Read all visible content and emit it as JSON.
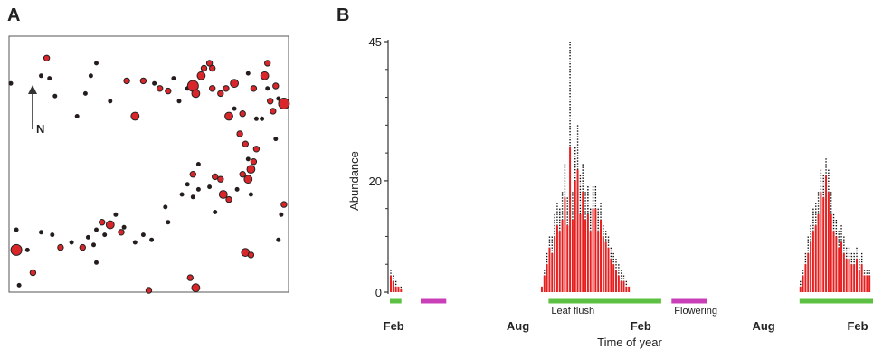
{
  "panels": {
    "a": {
      "letter": "A",
      "north_label": "N"
    },
    "b": {
      "letter": "B"
    }
  },
  "colors": {
    "bar_red": "#e62020",
    "point_red": "#d8262a",
    "leaf_flush_green": "#5cc043",
    "flowering_magenta": "#c93fb8",
    "outline": "#222222"
  },
  "chart_data": [
    {
      "type": "scatter",
      "description_units": "map coordinates (0-100 scale); size = relative symbol size",
      "xlim": [
        0,
        100
      ],
      "ylim": [
        0,
        100
      ],
      "points": [
        [
          0,
          82,
          1
        ],
        [
          11,
          85,
          1
        ],
        [
          13,
          92,
          2
        ],
        [
          14,
          84,
          1
        ],
        [
          16,
          77,
          1
        ],
        [
          24,
          69,
          1
        ],
        [
          27,
          78,
          1
        ],
        [
          29,
          85,
          1
        ],
        [
          31,
          90,
          1
        ],
        [
          36,
          75,
          1
        ],
        [
          42,
          83,
          2
        ],
        [
          45,
          69,
          3
        ],
        [
          48,
          83,
          2
        ],
        [
          52,
          82,
          1
        ],
        [
          54,
          80,
          2
        ],
        [
          57,
          79,
          2
        ],
        [
          59,
          84,
          1
        ],
        [
          61,
          75,
          1
        ],
        [
          64,
          80,
          1
        ],
        [
          66,
          81,
          4
        ],
        [
          67,
          78,
          3
        ],
        [
          69,
          85,
          3
        ],
        [
          70,
          88,
          2
        ],
        [
          72,
          90,
          2
        ],
        [
          73,
          80,
          2
        ],
        [
          73,
          88,
          2
        ],
        [
          76,
          78,
          2
        ],
        [
          78,
          80,
          2
        ],
        [
          81,
          82,
          3
        ],
        [
          79,
          69,
          3
        ],
        [
          81,
          72,
          1
        ],
        [
          83,
          62,
          2
        ],
        [
          84,
          70,
          2
        ],
        [
          85,
          58,
          2
        ],
        [
          86,
          52,
          1
        ],
        [
          89,
          68,
          1
        ],
        [
          92,
          85,
          3
        ],
        [
          93,
          90,
          2
        ],
        [
          93,
          80,
          1
        ],
        [
          94,
          75,
          2
        ],
        [
          95,
          71,
          2
        ],
        [
          96,
          60,
          1
        ],
        [
          97,
          76,
          1
        ],
        [
          99,
          74,
          4
        ],
        [
          88,
          51,
          2
        ],
        [
          89,
          56,
          2
        ],
        [
          87,
          48,
          3
        ],
        [
          84,
          46,
          2
        ],
        [
          82,
          40,
          1
        ],
        [
          86,
          44,
          3
        ],
        [
          76,
          44,
          2
        ],
        [
          74,
          45,
          2
        ],
        [
          72,
          41,
          1
        ],
        [
          68,
          50,
          1
        ],
        [
          66,
          46,
          2
        ],
        [
          64,
          42,
          1
        ],
        [
          62,
          38,
          1
        ],
        [
          66,
          37,
          1
        ],
        [
          74,
          31,
          1
        ],
        [
          68,
          40,
          1
        ],
        [
          77,
          38,
          3
        ],
        [
          79,
          36,
          2
        ],
        [
          87,
          38,
          1
        ],
        [
          99,
          34,
          2
        ],
        [
          98,
          30,
          1
        ],
        [
          97,
          20,
          1
        ],
        [
          57,
          27,
          1
        ],
        [
          56,
          33,
          1
        ],
        [
          45,
          19,
          1
        ],
        [
          41,
          25,
          1
        ],
        [
          40,
          23,
          2
        ],
        [
          38,
          30,
          1
        ],
        [
          36,
          26,
          3
        ],
        [
          34,
          22,
          1
        ],
        [
          33,
          27,
          2
        ],
        [
          31,
          24,
          1
        ],
        [
          30,
          18,
          1
        ],
        [
          28,
          21,
          1
        ],
        [
          26,
          17,
          2
        ],
        [
          22,
          19,
          1
        ],
        [
          18,
          17,
          2
        ],
        [
          15,
          22,
          1
        ],
        [
          11,
          23,
          1
        ],
        [
          6,
          16,
          1
        ],
        [
          2,
          16,
          4
        ],
        [
          2,
          24,
          1
        ],
        [
          8,
          7,
          2
        ],
        [
          3,
          2,
          1
        ],
        [
          48,
          22,
          1
        ],
        [
          51,
          20,
          1
        ],
        [
          85,
          15,
          3
        ],
        [
          87,
          14,
          2
        ],
        [
          65,
          5,
          2
        ],
        [
          67,
          1,
          3
        ],
        [
          50,
          0,
          2
        ],
        [
          31,
          11,
          1
        ],
        [
          88,
          80,
          2
        ],
        [
          86,
          86,
          1
        ],
        [
          96,
          81,
          2
        ],
        [
          91,
          68,
          1
        ]
      ]
    },
    {
      "type": "bar",
      "title": "",
      "xlabel": "Time of year",
      "ylabel": "Abundance",
      "ylim": [
        0,
        45
      ],
      "yticks": [
        0,
        20,
        45
      ],
      "x_tick_labels": [
        {
          "label": "Feb",
          "pos": 1.5
        },
        {
          "label": "Aug",
          "pos": 50
        },
        {
          "label": "Feb",
          "pos": 98
        },
        {
          "label": "Aug",
          "pos": 146
        },
        {
          "label": "Feb",
          "pos": 194
        }
      ],
      "values": [
        3,
        2,
        1,
        1,
        0.5,
        0,
        0,
        0,
        0,
        0,
        0,
        0,
        0,
        0,
        0,
        0,
        0,
        0,
        0,
        0,
        0,
        0,
        0,
        0,
        0,
        0,
        0,
        0,
        0,
        0,
        0,
        0,
        0,
        0,
        0,
        0,
        0,
        0,
        0,
        0,
        0,
        0,
        0,
        0,
        0,
        0,
        0,
        0,
        0,
        0,
        0,
        0,
        0,
        0,
        0,
        0,
        0,
        0,
        0,
        1,
        3,
        5,
        8,
        7,
        10,
        12,
        11,
        13,
        17,
        12,
        26,
        13,
        20,
        22,
        14,
        18,
        13,
        14,
        11,
        15,
        15,
        11,
        13,
        10,
        9,
        8,
        6,
        5,
        4,
        3,
        2,
        2,
        1,
        1,
        0,
        0,
        0,
        0,
        0,
        0,
        0,
        0,
        0,
        0,
        0,
        0,
        0,
        0,
        0,
        0,
        0,
        0,
        0,
        0,
        0,
        0,
        0,
        0,
        0,
        0,
        0,
        0,
        0,
        0,
        0,
        0,
        0,
        0,
        0,
        0,
        0,
        0,
        0,
        0,
        0,
        0,
        0,
        0,
        0,
        0,
        0,
        0,
        0,
        0,
        0,
        0,
        0,
        0,
        0,
        0,
        0,
        0,
        0,
        0,
        0,
        0,
        0,
        0,
        0,
        0,
        1,
        3,
        5,
        7,
        9,
        11,
        12,
        14,
        18,
        17,
        21,
        18,
        14,
        11,
        10,
        8,
        9,
        7,
        6,
        6,
        5,
        5,
        6,
        4,
        5,
        3,
        3,
        3
      ],
      "whiskers": [
        4,
        3,
        2,
        1,
        1,
        0,
        0,
        0,
        0,
        0,
        0,
        0,
        0,
        0,
        0,
        0,
        0,
        0,
        0,
        0,
        0,
        0,
        0,
        0,
        0,
        0,
        0,
        0,
        0,
        0,
        0,
        0,
        0,
        0,
        0,
        0,
        0,
        0,
        0,
        0,
        0,
        0,
        0,
        0,
        0,
        0,
        0,
        0,
        0,
        0,
        0,
        0,
        0,
        0,
        0,
        0,
        0,
        0,
        0,
        1,
        4,
        7,
        10,
        10,
        14,
        16,
        15,
        18,
        23,
        17,
        45,
        18,
        26,
        30,
        21,
        23,
        18,
        19,
        15,
        19,
        19,
        15,
        16,
        12,
        11,
        10,
        8,
        7,
        6,
        5,
        4,
        3,
        2,
        1,
        0,
        0,
        0,
        0,
        0,
        0,
        0,
        0,
        0,
        0,
        0,
        0,
        0,
        0,
        0,
        0,
        0,
        0,
        0,
        0,
        0,
        0,
        0,
        0,
        0,
        0,
        0,
        0,
        0,
        0,
        0,
        0,
        0,
        0,
        0,
        0,
        0,
        0,
        0,
        0,
        0,
        0,
        0,
        0,
        0,
        0,
        0,
        0,
        0,
        0,
        0,
        0,
        0,
        0,
        0,
        0,
        0,
        0,
        0,
        0,
        0,
        0,
        0,
        0,
        0,
        0,
        2,
        4,
        7,
        10,
        12,
        15,
        16,
        18,
        22,
        21,
        24,
        22,
        18,
        14,
        13,
        11,
        12,
        10,
        8,
        8,
        7,
        7,
        8,
        6,
        7,
        4,
        4,
        4
      ],
      "phenology_bars": [
        {
          "name": "",
          "color": "#5cc043",
          "start": 0,
          "end": 4.5
        },
        {
          "name": "",
          "color": "#c93fb8",
          "start": 12,
          "end": 22
        },
        {
          "name": "Leaf flush",
          "color": "#5cc043",
          "start": 62,
          "end": 106
        },
        {
          "name": "Flowering",
          "color": "#c93fb8",
          "start": 110,
          "end": 124
        },
        {
          "name": "",
          "color": "#5cc043",
          "start": 160,
          "end": 196
        }
      ],
      "grid": false,
      "legend": "none"
    }
  ]
}
